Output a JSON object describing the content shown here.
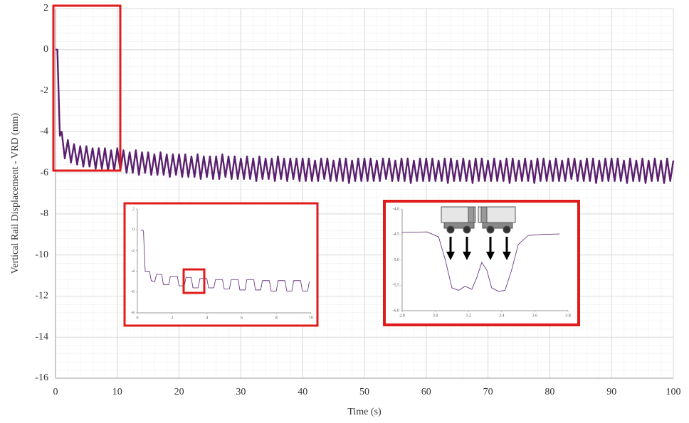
{
  "chart_data": [
    {
      "type": "line",
      "x_label": "Time (s)",
      "y_label": "Vertical Rail Displacement  - VRD (mm)",
      "xlim": [
        0,
        100
      ],
      "ylim": [
        -16,
        2
      ],
      "xticks": [
        0,
        10,
        20,
        30,
        40,
        50,
        60,
        70,
        80,
        90,
        100
      ],
      "yticks": [
        -16,
        -14,
        -12,
        -10,
        -8,
        -6,
        -4,
        -2,
        0,
        2
      ],
      "grid": true,
      "series": [
        {
          "color": "#5a1f6e",
          "x": [
            0,
            0.3,
            0.7,
            1,
            1.5,
            2,
            2.5,
            3,
            3.5,
            4,
            4.5,
            5,
            5.5,
            6,
            6.5,
            7,
            7.5,
            8,
            8.5,
            9,
            9.5,
            10,
            10.5,
            11,
            11.5,
            12,
            12.5,
            13,
            13.5,
            14,
            14.5,
            15,
            15.5,
            16,
            16.5,
            17,
            17.5,
            18,
            18.5,
            19,
            19.5,
            20,
            20.5,
            21,
            21.5,
            22,
            22.5,
            23,
            23.5,
            24,
            24.5,
            25,
            25.5,
            26,
            26.5,
            27,
            27.5,
            28,
            28.5,
            29,
            29.5,
            30,
            30.5,
            31,
            31.5,
            32,
            32.5,
            33,
            33.5,
            34,
            34.5,
            35,
            35.5,
            36,
            36.5,
            37,
            37.5,
            38,
            38.5,
            39,
            39.5,
            40,
            40.5,
            41,
            41.5,
            42,
            42.5,
            43,
            43.5,
            44,
            44.5,
            45,
            45.5,
            46,
            46.5,
            47,
            47.5,
            48,
            48.5,
            49,
            49.5,
            50,
            50.5,
            51,
            51.5,
            52,
            52.5,
            53,
            53.5,
            54,
            54.5,
            55,
            55.5,
            56,
            56.5,
            57,
            57.5,
            58,
            58.5,
            59,
            59.5,
            60,
            60.5,
            61,
            61.5,
            62,
            62.5,
            63,
            63.5,
            64,
            64.5,
            65,
            65.5,
            66,
            66.5,
            67,
            67.5,
            68,
            68.5,
            69,
            69.5,
            70,
            70.5,
            71,
            71.5,
            72,
            72.5,
            73,
            73.5,
            74,
            74.5,
            75,
            75.5,
            76,
            76.5,
            77,
            77.5,
            78,
            78.5,
            79,
            79.5,
            80,
            80.5,
            81,
            81.5,
            82,
            82.5,
            83,
            83.5,
            84,
            84.5,
            85,
            85.5,
            86,
            86.5,
            87,
            87.5,
            88,
            88.5,
            89,
            89.5,
            90,
            90.5,
            91,
            91.5,
            92,
            92.5,
            93,
            93.5,
            94,
            94.5,
            95,
            95.5,
            96,
            96.5,
            97,
            97.5,
            98,
            98.5,
            99,
            99.5,
            100
          ],
          "values": [
            0,
            0,
            -4.2,
            -4.0,
            -5.3,
            -4.4,
            -5.5,
            -4.6,
            -5.6,
            -4.7,
            -5.7,
            -4.7,
            -5.7,
            -4.8,
            -5.8,
            -4.8,
            -5.8,
            -4.8,
            -5.9,
            -4.9,
            -5.9,
            -4.8,
            -5.9,
            -4.9,
            -6.0,
            -5.0,
            -6.0,
            -4.9,
            -6.1,
            -5.0,
            -6.0,
            -5.0,
            -6.1,
            -5.1,
            -6.1,
            -5.0,
            -6.1,
            -5.1,
            -6.2,
            -5.1,
            -6.1,
            -5.1,
            -6.2,
            -5.1,
            -6.2,
            -5.2,
            -6.2,
            -5.1,
            -6.3,
            -5.2,
            -6.2,
            -5.2,
            -6.3,
            -5.2,
            -6.3,
            -5.1,
            -6.2,
            -5.2,
            -6.3,
            -5.2,
            -6.3,
            -5.3,
            -6.3,
            -5.2,
            -6.3,
            -5.3,
            -6.4,
            -5.2,
            -6.3,
            -5.3,
            -6.3,
            -5.3,
            -6.4,
            -5.2,
            -6.3,
            -5.3,
            -6.4,
            -5.3,
            -6.3,
            -5.3,
            -6.4,
            -5.3,
            -6.4,
            -5.3,
            -6.4,
            -5.4,
            -6.4,
            -5.3,
            -6.3,
            -5.3,
            -6.4,
            -5.4,
            -6.4,
            -5.3,
            -6.4,
            -5.3,
            -6.5,
            -5.4,
            -6.4,
            -5.3,
            -6.4,
            -5.3,
            -6.4,
            -5.3,
            -6.4,
            -5.4,
            -6.4,
            -5.3,
            -6.3,
            -5.3,
            -6.4,
            -5.4,
            -6.4,
            -5.3,
            -6.4,
            -5.3,
            -6.5,
            -5.4,
            -6.4,
            -5.3,
            -6.4,
            -5.3,
            -6.4,
            -5.3,
            -6.4,
            -5.4,
            -6.4,
            -5.3,
            -6.5,
            -5.3,
            -6.4,
            -5.4,
            -6.4,
            -5.3,
            -6.4,
            -5.4,
            -6.5,
            -5.3,
            -6.4,
            -5.3,
            -6.4,
            -5.4,
            -6.4,
            -5.3,
            -6.4,
            -5.4,
            -6.4,
            -5.3,
            -6.5,
            -5.3,
            -6.4,
            -5.4,
            -6.4,
            -5.3,
            -6.4,
            -5.4,
            -6.5,
            -5.3,
            -6.4,
            -5.3,
            -6.4,
            -5.4,
            -6.4,
            -5.3,
            -6.4,
            -5.4,
            -6.4,
            -5.3,
            -6.3,
            -5.3,
            -6.4,
            -5.4,
            -6.4,
            -5.3,
            -6.4,
            -5.3,
            -6.5,
            -5.4,
            -6.4,
            -5.3,
            -6.4,
            -5.3,
            -6.4,
            -5.3,
            -6.4,
            -5.4,
            -6.5,
            -5.3,
            -6.4,
            -5.4,
            -6.4,
            -5.3,
            -6.5,
            -5.4,
            -6.4,
            -5.3,
            -6.4,
            -5.4,
            -6.5,
            -5.3,
            -6.4,
            -5.4
          ]
        }
      ]
    },
    {
      "type": "line",
      "xlim": [
        0,
        10
      ],
      "ylim": [
        -8,
        2
      ],
      "xticks": [
        0,
        2,
        4,
        6,
        8,
        10
      ],
      "yticks": [
        -8,
        -6,
        -4,
        -2,
        0,
        2
      ],
      "grid": false,
      "series": [
        {
          "color": "#6b3a80",
          "x": [
            0.2,
            0.35,
            0.45,
            0.7,
            0.8,
            1.0,
            1.1,
            1.4,
            1.5,
            1.8,
            1.9,
            2.3,
            2.4,
            2.7,
            2.8,
            3.1,
            3.2,
            3.5,
            3.6,
            4.0,
            4.1,
            4.4,
            4.5,
            4.9,
            5.0,
            5.3,
            5.4,
            5.8,
            5.9,
            6.2,
            6.3,
            6.7,
            6.8,
            7.1,
            7.2,
            7.6,
            7.7,
            8.0,
            8.1,
            8.5,
            8.6,
            8.9,
            9.0,
            9.4,
            9.5,
            9.8,
            9.9
          ],
          "values": [
            0,
            -0.1,
            -4.0,
            -4.0,
            -4.9,
            -5.0,
            -4.3,
            -4.3,
            -5.3,
            -5.3,
            -4.5,
            -4.5,
            -5.4,
            -5.4,
            -4.6,
            -4.6,
            -5.6,
            -5.6,
            -4.7,
            -4.7,
            -5.6,
            -5.6,
            -4.8,
            -4.8,
            -5.7,
            -5.7,
            -4.8,
            -4.8,
            -5.8,
            -5.8,
            -4.8,
            -4.8,
            -5.8,
            -5.8,
            -4.9,
            -4.9,
            -5.9,
            -5.9,
            -4.9,
            -4.9,
            -5.9,
            -5.9,
            -4.9,
            -4.9,
            -5.9,
            -5.9,
            -5.0
          ]
        }
      ]
    },
    {
      "type": "line",
      "xlim": [
        2.8,
        3.8
      ],
      "ylim": [
        -6,
        -4
      ],
      "xticks": [
        2.8,
        {
          "value": 3,
          "label": "3.0"
        },
        3.2,
        3.4,
        3.6,
        3.8
      ],
      "yticks": [
        {
          "value": -6,
          "label": "-6.0"
        },
        -5.5,
        {
          "value": -5,
          "label": "-5.0"
        },
        -4.5,
        {
          "value": -4,
          "label": "-4.0"
        }
      ],
      "grid": false,
      "series": [
        {
          "color": "#6b3a80",
          "x": [
            2.8,
            2.95,
            3.02,
            3.06,
            3.1,
            3.14,
            3.18,
            3.22,
            3.25,
            3.28,
            3.31,
            3.34,
            3.38,
            3.42,
            3.46,
            3.5,
            3.56,
            3.65,
            3.75
          ],
          "values": [
            -4.46,
            -4.45,
            -4.55,
            -5.0,
            -5.55,
            -5.6,
            -5.52,
            -5.58,
            -5.35,
            -5.05,
            -5.2,
            -5.55,
            -5.62,
            -5.6,
            -5.2,
            -4.7,
            -4.52,
            -4.5,
            -4.49
          ]
        }
      ]
    }
  ]
}
